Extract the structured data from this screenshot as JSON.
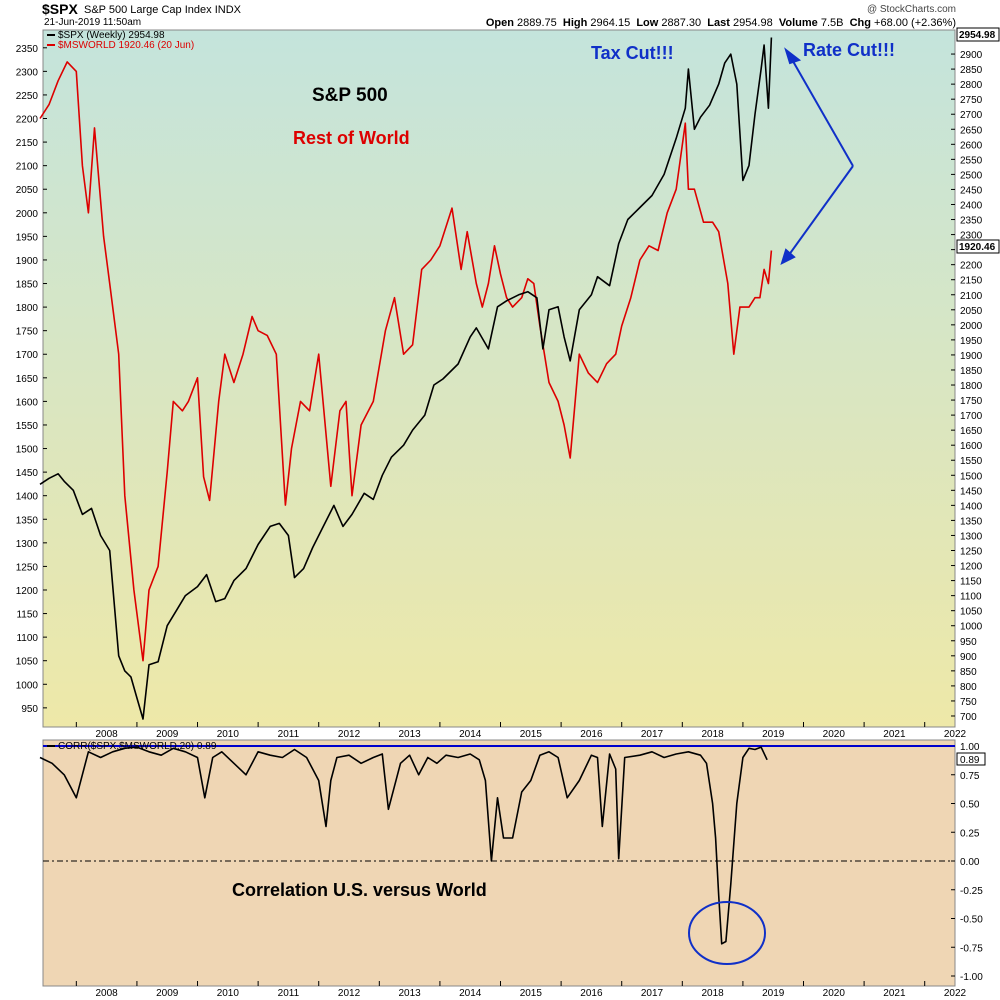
{
  "header": {
    "symbol": "$SPX",
    "description": "S&P 500 Large Cap Index",
    "exchange": "INDX",
    "datetime": "21-Jun-2019 11:50am",
    "copyright": "@ StockCharts.com",
    "open_label": "Open",
    "open": "2889.75",
    "high_label": "High",
    "high": "2964.15",
    "low_label": "Low",
    "low": "2887.30",
    "last_label": "Last",
    "last": "2954.98",
    "volume_label": "Volume",
    "volume": "7.5B",
    "chg_label": "Chg",
    "chg": "+68.00 (+2.36%)"
  },
  "colors": {
    "spx": "#000000",
    "msworld": "#dd0000",
    "annotation_blue": "#0000cc",
    "annotation_red": "#dd0000",
    "top_panel_top": "#c4e4dc",
    "top_panel_bottom": "#eee8a8",
    "bottom_panel": "#efd6b4"
  },
  "chart_data": [
    {
      "type": "line",
      "title": "S&P 500",
      "subtitle": "Rest of World",
      "legend": [
        "$SPX (Weekly) 2954.98",
        "$MSWORLD 1920.46 (20 Jun)"
      ],
      "legend_position": "top-left",
      "x_ticks": [
        "2008",
        "2009",
        "2010",
        "2011",
        "2012",
        "2013",
        "2014",
        "2015",
        "2016",
        "2017",
        "2018",
        "2019",
        "2020",
        "2021",
        "2022"
      ],
      "y_left_ticks": [
        2350,
        2300,
        2250,
        2200,
        2150,
        2100,
        2050,
        2000,
        1950,
        1900,
        1850,
        1800,
        1750,
        1700,
        1650,
        1600,
        1550,
        1500,
        1450,
        1400,
        1350,
        1300,
        1250,
        1200,
        1150,
        1100,
        1050,
        1000,
        950
      ],
      "y_right_ticks": [
        2900,
        2850,
        2800,
        2750,
        2700,
        2650,
        2600,
        2550,
        2500,
        2450,
        2400,
        2350,
        2300,
        2250,
        2200,
        2150,
        2100,
        2050,
        2000,
        1950,
        1900,
        1850,
        1800,
        1750,
        1700,
        1650,
        1600,
        1550,
        1500,
        1450,
        1400,
        1350,
        1300,
        1250,
        1200,
        1150,
        1100,
        1050,
        1000,
        950,
        900,
        850,
        800,
        750,
        700
      ],
      "ylim_left": [
        920,
        2375
      ],
      "ylim_right": [
        680,
        2960
      ],
      "grid": false,
      "last_value_labels": [
        "2954.98",
        "1920.46"
      ],
      "annotations": [
        "Tax Cut!!!",
        "Rate Cut!!!"
      ],
      "series": [
        {
          "name": "$SPX (Weekly)",
          "axis": "right",
          "x": [
            2007.4,
            2007.55,
            2007.7,
            2007.8,
            2007.95,
            2008.1,
            2008.25,
            2008.4,
            2008.55,
            2008.7,
            2008.8,
            2008.9,
            2009.0,
            2009.1,
            2009.2,
            2009.35,
            2009.5,
            2009.65,
            2009.8,
            2010.0,
            2010.15,
            2010.3,
            2010.45,
            2010.6,
            2010.8,
            2011.0,
            2011.2,
            2011.35,
            2011.5,
            2011.6,
            2011.75,
            2011.9,
            2012.05,
            2012.25,
            2012.4,
            2012.55,
            2012.75,
            2012.9,
            2013.05,
            2013.2,
            2013.4,
            2013.55,
            2013.75,
            2013.9,
            2014.05,
            2014.3,
            2014.5,
            2014.6,
            2014.8,
            2014.95,
            2015.1,
            2015.3,
            2015.45,
            2015.6,
            2015.7,
            2015.8,
            2015.95,
            2016.05,
            2016.15,
            2016.3,
            2016.5,
            2016.6,
            2016.8,
            2016.95,
            2017.1,
            2017.3,
            2017.5,
            2017.7,
            2017.9,
            2018.05,
            2018.1,
            2018.2,
            2018.3,
            2018.45,
            2018.6,
            2018.7,
            2018.8,
            2018.9,
            2019.0,
            2019.1,
            2019.2,
            2019.3,
            2019.35,
            2019.42,
            2019.47
          ],
          "values": [
            1470,
            1490,
            1505,
            1480,
            1450,
            1370,
            1390,
            1300,
            1250,
            900,
            850,
            830,
            760,
            690,
            870,
            880,
            1000,
            1050,
            1100,
            1130,
            1170,
            1080,
            1090,
            1150,
            1190,
            1270,
            1330,
            1340,
            1300,
            1160,
            1190,
            1260,
            1320,
            1400,
            1330,
            1370,
            1440,
            1420,
            1500,
            1560,
            1600,
            1650,
            1700,
            1800,
            1820,
            1870,
            1960,
            1990,
            1920,
            2060,
            2080,
            2100,
            2110,
            2090,
            1920,
            2050,
            2060,
            1960,
            1880,
            2050,
            2100,
            2160,
            2130,
            2270,
            2350,
            2390,
            2430,
            2500,
            2620,
            2720,
            2850,
            2650,
            2690,
            2730,
            2800,
            2870,
            2900,
            2800,
            2480,
            2530,
            2700,
            2850,
            2930,
            2720,
            2955
          ]
        },
        {
          "name": "$MSWORLD",
          "axis": "left",
          "x": [
            2007.4,
            2007.55,
            2007.7,
            2007.85,
            2008.0,
            2008.1,
            2008.2,
            2008.3,
            2008.45,
            2008.55,
            2008.7,
            2008.8,
            2008.95,
            2009.1,
            2009.2,
            2009.35,
            2009.5,
            2009.6,
            2009.75,
            2009.85,
            2010.0,
            2010.1,
            2010.2,
            2010.35,
            2010.45,
            2010.6,
            2010.75,
            2010.9,
            2011.0,
            2011.15,
            2011.3,
            2011.45,
            2011.55,
            2011.7,
            2011.85,
            2012.0,
            2012.2,
            2012.35,
            2012.45,
            2012.55,
            2012.7,
            2012.9,
            2013.1,
            2013.25,
            2013.4,
            2013.55,
            2013.7,
            2013.85,
            2014.0,
            2014.2,
            2014.35,
            2014.45,
            2014.6,
            2014.7,
            2014.8,
            2014.9,
            2015.0,
            2015.1,
            2015.2,
            2015.35,
            2015.45,
            2015.55,
            2015.65,
            2015.8,
            2015.95,
            2016.05,
            2016.15,
            2016.3,
            2016.45,
            2016.6,
            2016.75,
            2016.9,
            2017.0,
            2017.15,
            2017.3,
            2017.45,
            2017.6,
            2017.75,
            2017.9,
            2018.05,
            2018.1,
            2018.2,
            2018.35,
            2018.5,
            2018.6,
            2018.75,
            2018.85,
            2018.95,
            2019.1,
            2019.2,
            2019.28,
            2019.35,
            2019.42,
            2019.47
          ],
          "values": [
            2200,
            2230,
            2280,
            2320,
            2300,
            2100,
            2000,
            2180,
            1950,
            1850,
            1700,
            1400,
            1200,
            1050,
            1200,
            1250,
            1450,
            1600,
            1580,
            1600,
            1650,
            1440,
            1390,
            1600,
            1700,
            1640,
            1700,
            1780,
            1750,
            1740,
            1700,
            1380,
            1500,
            1600,
            1580,
            1700,
            1420,
            1580,
            1600,
            1400,
            1550,
            1600,
            1750,
            1820,
            1700,
            1720,
            1880,
            1900,
            1930,
            2010,
            1880,
            1960,
            1850,
            1800,
            1850,
            1930,
            1870,
            1820,
            1800,
            1820,
            1860,
            1850,
            1760,
            1640,
            1600,
            1550,
            1480,
            1700,
            1660,
            1640,
            1680,
            1700,
            1760,
            1820,
            1900,
            1930,
            1920,
            2000,
            2050,
            2190,
            2050,
            2050,
            1980,
            1980,
            1960,
            1850,
            1700,
            1800,
            1800,
            1820,
            1820,
            1880,
            1850,
            1920
          ]
        }
      ]
    },
    {
      "type": "line",
      "title": "Correlation U.S. versus World",
      "legend": [
        "CORR($SPX,$MSWORLD,20) 0.89"
      ],
      "x_ticks": [
        "2008",
        "2009",
        "2010",
        "2011",
        "2012",
        "2013",
        "2014",
        "2015",
        "2016",
        "2017",
        "2018",
        "2019",
        "2020",
        "2021",
        "2022"
      ],
      "y_ticks": [
        1.0,
        0.75,
        0.5,
        0.25,
        0.0,
        -0.25,
        -0.5,
        -0.75,
        -1.0
      ],
      "ylim": [
        -1.0,
        1.0
      ],
      "reference_lines": [
        1.0,
        0.0
      ],
      "last_value_label": "0.89",
      "series": [
        {
          "name": "CORR($SPX,$MSWORLD,20)",
          "x": [
            2007.4,
            2007.6,
            2007.8,
            2008.0,
            2008.2,
            2008.4,
            2008.6,
            2008.8,
            2009.0,
            2009.2,
            2009.4,
            2009.6,
            2009.8,
            2010.0,
            2010.12,
            2010.25,
            2010.4,
            2010.6,
            2010.8,
            2011.0,
            2011.2,
            2011.4,
            2011.6,
            2011.8,
            2012.0,
            2012.12,
            2012.2,
            2012.3,
            2012.5,
            2012.7,
            2012.9,
            2013.05,
            2013.15,
            2013.35,
            2013.5,
            2013.65,
            2013.8,
            2013.95,
            2014.1,
            2014.3,
            2014.5,
            2014.65,
            2014.75,
            2014.85,
            2014.95,
            2015.05,
            2015.2,
            2015.35,
            2015.5,
            2015.65,
            2015.8,
            2015.95,
            2016.1,
            2016.3,
            2016.5,
            2016.6,
            2016.68,
            2016.8,
            2016.9,
            2016.95,
            2017.05,
            2017.3,
            2017.5,
            2017.7,
            2017.9,
            2018.1,
            2018.3,
            2018.4,
            2018.5,
            2018.55,
            2018.6,
            2018.65,
            2018.72,
            2018.8,
            2018.9,
            2019.0,
            2019.1,
            2019.2,
            2019.3,
            2019.4
          ],
          "values": [
            0.9,
            0.85,
            0.75,
            0.55,
            0.95,
            0.9,
            0.95,
            0.98,
            0.99,
            0.95,
            0.92,
            0.98,
            0.95,
            0.9,
            0.55,
            0.9,
            0.95,
            0.85,
            0.75,
            0.95,
            0.92,
            0.9,
            0.97,
            0.9,
            0.7,
            0.3,
            0.7,
            0.9,
            0.92,
            0.85,
            0.9,
            0.93,
            0.45,
            0.85,
            0.92,
            0.75,
            0.9,
            0.85,
            0.92,
            0.9,
            0.93,
            0.88,
            0.7,
            0.0,
            0.55,
            0.2,
            0.2,
            0.6,
            0.7,
            0.92,
            0.95,
            0.9,
            0.55,
            0.7,
            0.92,
            0.9,
            0.3,
            0.93,
            0.8,
            0.02,
            0.9,
            0.92,
            0.95,
            0.9,
            0.93,
            0.95,
            0.92,
            0.85,
            0.5,
            0.2,
            -0.3,
            -0.72,
            -0.7,
            -0.2,
            0.5,
            0.9,
            0.98,
            0.97,
            0.99,
            0.88
          ]
        }
      ]
    }
  ],
  "annotations": {
    "sp500": "S&P 500",
    "rest_of_world": "Rest of World",
    "tax_cut": "Tax Cut!!!",
    "rate_cut": "Rate Cut!!!",
    "correlation": "Correlation U.S. versus World"
  }
}
